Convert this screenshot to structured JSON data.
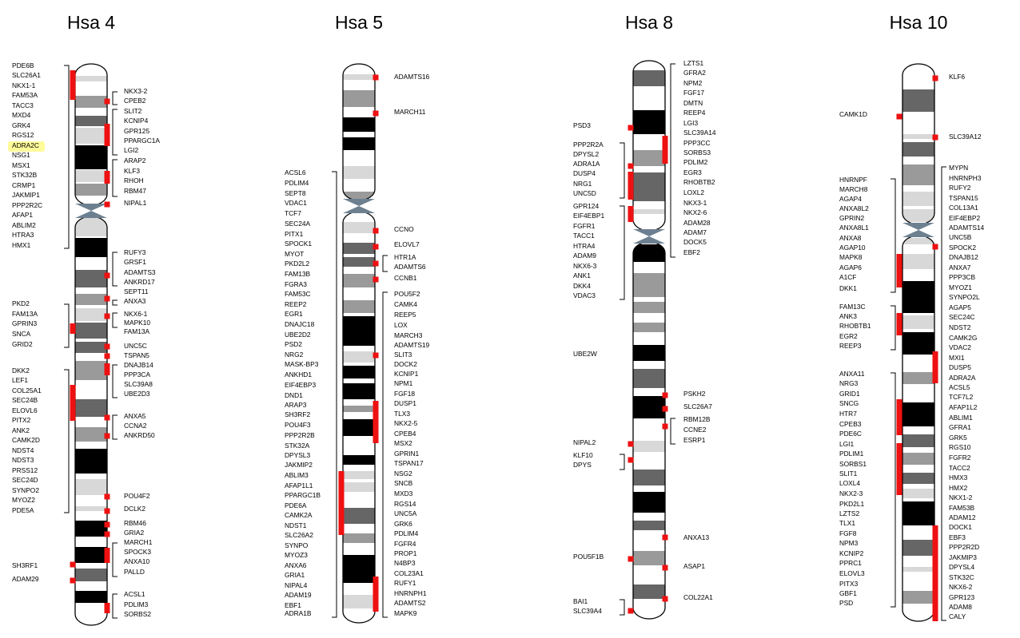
{
  "chromosomes": [
    {
      "title": "Hsa 4",
      "left_labels": [
        "PDE6B",
        "SLC26A1",
        "NKX1-1",
        "FAM53A",
        "TACC3",
        "MXD4",
        "GRK4",
        "RGS12",
        "ADRA2C",
        "NSG1",
        "MSX1",
        "STK32B",
        "CRMP1",
        "JAKMIP1",
        "PPP2R2C",
        "AFAP1",
        "ABLIM2",
        "HTRA3",
        "HMX1",
        "PKD2",
        "FAM13A",
        "GPRIN3",
        "SNCA",
        "GRID2",
        "DKK2",
        "LEF1",
        "COL25A1",
        "SEC24B",
        "ELOVL6",
        "PITX2",
        "ANK2",
        "CAMK2D",
        "NDST4",
        "NDST3",
        "PRSS12",
        "SEC24D",
        "SYNPO2",
        "MYOZ2",
        "PDE5A",
        "SH3RF1",
        "ADAM29"
      ],
      "right_labels": [
        "NKX3-2",
        "CPEB2",
        "SLIT2",
        "KCNIP4",
        "GPR125",
        "PPARGC1A",
        "LGI2",
        "ARAP2",
        "KLF3",
        "RHOH",
        "RBM47",
        "NIPAL1",
        "RUFY3",
        "GRSF1",
        "ADAMTS3",
        "ANKRD17",
        "SEPT11",
        "ANXA3",
        "NKX6-1",
        "MAPK10",
        "FAM13A",
        "UNC5C",
        "TSPAN5",
        "DNAJB14",
        "PPP3CA",
        "SLC39A8",
        "UBE2D3",
        "ANXA5",
        "CCNA2",
        "ANKRD50",
        "POU4F2",
        "DCLK2",
        "RBM46",
        "GRIA2",
        "MARCH1",
        "SPOCK3",
        "ANXA10",
        "PALLD",
        "ACSL1",
        "PDLIM3",
        "SORBS2"
      ],
      "highlighted": "ADRA2C"
    },
    {
      "title": "Hsa 5",
      "left_labels": [
        "ACSL6",
        "PDLIM4",
        "SEPT8",
        "VDAC1",
        "TCF7",
        "SEC24A",
        "PITX1",
        "SPOCK1",
        "MYOT",
        "PKD2L2",
        "FAM13B",
        "FGRA3",
        "FAM53C",
        "REEP2",
        "EGR1",
        "DNAJC18",
        "UBE2D2",
        "PSD2",
        "NRG2",
        "MASK-BP3",
        "ANKHD1",
        "EIF4EBP3",
        "DND1",
        "ARAP3",
        "SH3RF2",
        "POU4F3",
        "PPP2R2B",
        "STK32A",
        "DPYSL3",
        "JAKMIP2",
        "ABLIM3",
        "AFAP1L1",
        "PPARGC1B",
        "PDE6A",
        "CAMK2A",
        "NDST1",
        "SLC26A2",
        "SYNPO",
        "MYOZ3",
        "ANXA6",
        "GRIA1",
        "NIPAL4",
        "ADAM19",
        "EBF1",
        "ADRA1B"
      ],
      "right_labels": [
        "ADAMTS16",
        "MARCH11",
        "CCNO",
        "ELOVL7",
        "HTR1A",
        "ADAMTS6",
        "CCNB1",
        "POU5F2",
        "CAMK4",
        "REEP5",
        "LOX",
        "MARCH3",
        "ADAMTS19",
        "SLIT3",
        "DOCK2",
        "KCNIP1",
        "NPM1",
        "FGF18",
        "DUSP1",
        "TLX3",
        "NKX2-5",
        "CPEB4",
        "MSX2",
        "GPRIN1",
        "TSPAN17",
        "NSG2",
        "SNCB",
        "MXD3",
        "RGS14",
        "UNC5A",
        "GRK6",
        "PDLIM4",
        "FGFR4",
        "PROP1",
        "N4BP3",
        "COL23A1",
        "RUFY1",
        "HNRNPH1",
        "ADAMTS2",
        "MAPK9"
      ]
    },
    {
      "title": "Hsa 8",
      "left_labels": [
        "PSD3",
        "PPP2R2A",
        "DPYSL2",
        "ADRA1A",
        "DUSP4",
        "NRG1",
        "UNC5D",
        "GPR124",
        "EIF4EBP1",
        "FGFR1",
        "TACC1",
        "HTRA4",
        "ADAM9",
        "NKX6-3",
        "ANK1",
        "DKK4",
        "VDAC3",
        "UBE2W",
        "NIPAL2",
        "KLF10",
        "DPYS",
        "POU5F1B",
        "BAI1",
        "SLC39A4"
      ],
      "right_labels": [
        "LZTS1",
        "GFRA2",
        "NPM2",
        "FGF17",
        "DMTN",
        "REEP4",
        "LGI3",
        "SLC39A14",
        "PPP3CC",
        "SORBS3",
        "PDLIM2",
        "EGR3",
        "RHOBTB2",
        "LOXL2",
        "NKX3-1",
        "NKX2-6",
        "ADAM28",
        "ADAM7",
        "DOCK5",
        "EBF2",
        "PSKH2",
        "SLC26A7",
        "RBM12B",
        "CCNE2",
        "ESRP1",
        "ANXA13",
        "ASAP1",
        "COL22A1"
      ]
    },
    {
      "title": "Hsa 10",
      "left_labels": [
        "CAMK1D",
        "HNRNPF",
        "MARCH8",
        "AGAP4",
        "ANXA8L2",
        "GPRIN2",
        "ANXA8L1",
        "ANXA8",
        "AGAP10",
        "MAPK8",
        "AGAP6",
        "A1CF",
        "DKK1",
        "FAM13C",
        "ANK3",
        "RHOBTB1",
        "EGR2",
        "REEP3",
        "ANXA11",
        "NRG3",
        "GRID1",
        "SNCG",
        "HTR7",
        "CPEB3",
        "PDE6C",
        "LGI1",
        "PDLIM1",
        "SORBS1",
        "SLIT1",
        "LOXL4",
        "NKX2-3",
        "PKD2L1",
        "LZTS2",
        "TLX1",
        "FGF8",
        "NPM3",
        "KCNIP2",
        "PPRC1",
        "ELOVL3",
        "PITX3",
        "GBF1",
        "PSD"
      ],
      "right_labels": [
        "KLF6",
        "SLC39A12",
        "MYPN",
        "HNRNPH3",
        "RUFY2",
        "TSPAN15",
        "COL13A1",
        "EIF4EBP2",
        "ADAMTS14",
        "UNC5B",
        "SPOCK2",
        "DNAJB12",
        "ANXA7",
        "PPP3CB",
        "MYOZ1",
        "SYNPO2L",
        "AGAP5",
        "SEC24C",
        "NDST2",
        "CAMK2G",
        "VDAC2",
        "MXI1",
        "DUSP5",
        "ADRA2A",
        "ACSL5",
        "TCF7L2",
        "AFAP1L2",
        "ABLIM1",
        "GFRA1",
        "GRK5",
        "RGS10",
        "FGFR2",
        "TACC2",
        "HMX3",
        "HMX2",
        "NKX1-2",
        "FAM53B",
        "ADAM12",
        "DOCK1",
        "EBF3",
        "PPP2R2D",
        "JAKMIP3",
        "DPYSL4",
        "STK32C",
        "NKX6-2",
        "GPR123",
        "ADAM8",
        "CALY"
      ]
    }
  ],
  "colors": {
    "marker": "#ee1111",
    "highlight": "#fffb9a",
    "centromere": "#6d8090",
    "band_dark": "#000000",
    "band_mid": "#666666",
    "band_light": "#9a9a9a",
    "band_pale": "#d8d8d8"
  }
}
